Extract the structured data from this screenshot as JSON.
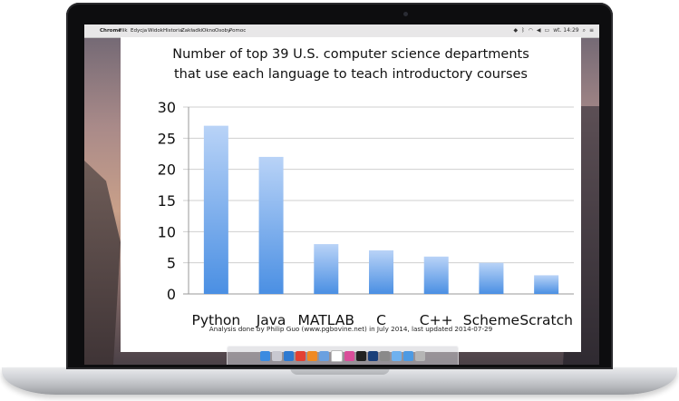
{
  "menubar": {
    "apple_icon": "apple-icon",
    "items": [
      "Chrome",
      "Plik",
      "Edycja",
      "Widok",
      "Historia",
      "Zakładki",
      "Okno",
      "Osoby",
      "Pomoc"
    ],
    "clock": "wt. 14:29"
  },
  "slide": {
    "footnote": "Analysis done by Philip Guo (www.pgbovine.net) in July 2014, last updated 2014-07-29"
  },
  "chart_data": {
    "type": "bar",
    "title": "Number of top 39 U.S. computer science departments that use each language to teach introductory courses",
    "title_lines": [
      "Number of top 39 U.S. computer science departments",
      "that use each language to teach introductory courses"
    ],
    "categories": [
      "Python",
      "Java",
      "MATLAB",
      "C",
      "C++",
      "Scheme",
      "Scratch"
    ],
    "values": [
      27,
      22,
      8,
      7,
      6,
      5,
      3
    ],
    "ylim": [
      0,
      30
    ],
    "yticks": [
      "0",
      "5",
      "10",
      "15",
      "20",
      "25",
      "30"
    ],
    "xlabel": "",
    "ylabel": "",
    "grid": true,
    "bar_color_top": "#b9d3f7",
    "bar_color_bottom": "#4a8fe3"
  },
  "dock": {
    "icons": [
      "finder-icon",
      "launchpad-icon",
      "safari-icon",
      "chrome-icon",
      "firefox-icon",
      "mail-icon",
      "calendar-icon",
      "itunes-icon",
      "terminal-icon",
      "photoshop-icon",
      "settings-icon",
      "folder-icon",
      "downloads-icon",
      "trash-icon"
    ],
    "colors": [
      "#3c8be0",
      "#c8c8d0",
      "#2e7ad1",
      "#e34133",
      "#f08a24",
      "#6aa0e0",
      "#ffffff",
      "#d94d9a",
      "#222222",
      "#1b3f7a",
      "#8a8a8a",
      "#6fb1ef",
      "#4d9ae3",
      "#b5b5b5"
    ]
  }
}
